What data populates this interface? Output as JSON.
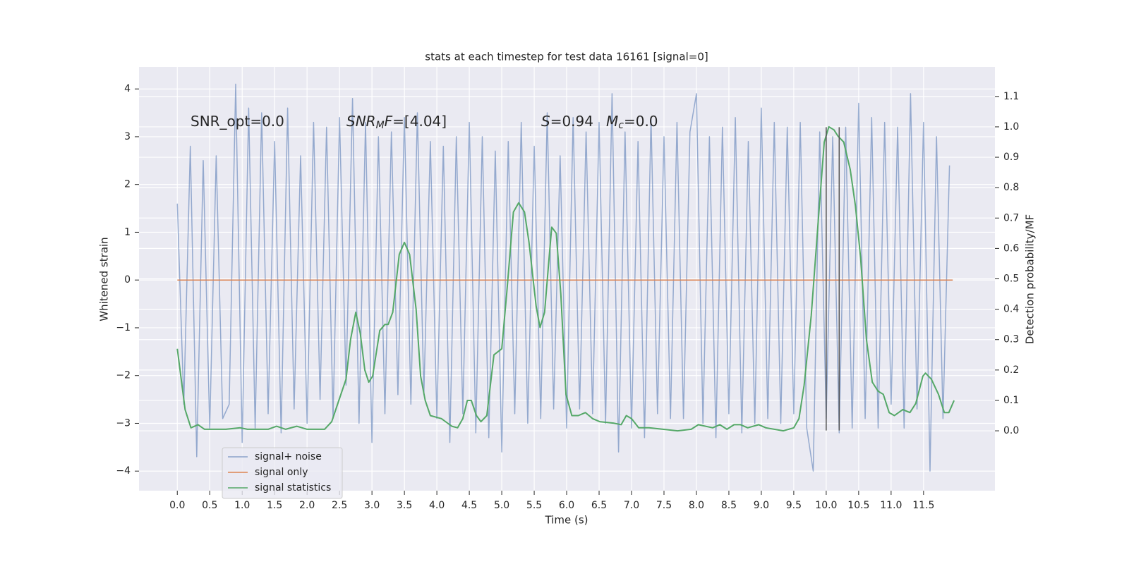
{
  "chart_data": {
    "type": "line",
    "title": "stats at each timestep for test data 16161 [signal=0]",
    "xlabel": "Time (s)",
    "ylabel": "Whitened strain",
    "y2label": "Detection probability/MF",
    "xlim": [
      -0.59,
      12.6
    ],
    "ylim": [
      -4.41,
      4.46
    ],
    "y2lim": [
      -0.197,
      1.197
    ],
    "xticks": [
      {
        "value": 0,
        "label": "0.0"
      },
      0.5,
      {
        "value": 1,
        "label": "1.0"
      },
      1.5,
      {
        "value": 2,
        "label": "2.0"
      },
      2.5,
      {
        "value": 3,
        "label": "3.0"
      },
      3.5,
      {
        "value": 4,
        "label": "4.0"
      },
      4.5,
      {
        "value": 5,
        "label": "5.0"
      },
      5.5,
      {
        "value": 6,
        "label": "6.0"
      },
      6.5,
      {
        "value": 7,
        "label": "7.0"
      },
      7.5,
      {
        "value": 8,
        "label": "8.0"
      },
      8.5,
      {
        "value": 9,
        "label": "9.0"
      },
      9.5,
      {
        "value": 10,
        "label": "10.0"
      },
      10.5,
      {
        "value": 11,
        "label": "11.0"
      },
      11.5
    ],
    "yticks": [
      {
        "value": -4,
        "label": "−4"
      },
      {
        "value": -3,
        "label": "−3"
      },
      {
        "value": -2,
        "label": "−2"
      },
      {
        "value": -1,
        "label": "−1"
      },
      0,
      1,
      2,
      3,
      4
    ],
    "y2ticks": [
      {
        "value": 0,
        "label": "0.0"
      },
      0.1,
      0.2,
      0.3,
      0.4,
      0.5,
      0.6,
      0.7,
      0.8,
      0.9,
      {
        "value": 1,
        "label": "1.0"
      },
      1.1
    ],
    "grid": true,
    "legend": "lower left",
    "series": [
      {
        "name": "signal+ noise",
        "color": "#4c72b0",
        "axis": "y",
        "x": [
          0.0,
          0.1,
          0.2,
          0.3,
          0.4,
          0.5,
          0.6,
          0.7,
          0.8,
          0.9,
          1.0,
          1.1,
          1.2,
          1.3,
          1.4,
          1.5,
          1.6,
          1.7,
          1.8,
          1.9,
          2.0,
          2.1,
          2.2,
          2.3,
          2.4,
          2.5,
          2.6,
          2.7,
          2.8,
          2.9,
          3.0,
          3.1,
          3.2,
          3.3,
          3.4,
          3.5,
          3.6,
          3.7,
          3.8,
          3.9,
          4.0,
          4.1,
          4.2,
          4.3,
          4.4,
          4.5,
          4.6,
          4.7,
          4.8,
          4.9,
          5.0,
          5.1,
          5.2,
          5.3,
          5.4,
          5.5,
          5.6,
          5.7,
          5.8,
          5.9,
          6.0,
          6.1,
          6.2,
          6.3,
          6.4,
          6.5,
          6.6,
          6.7,
          6.8,
          6.9,
          7.0,
          7.1,
          7.2,
          7.3,
          7.4,
          7.5,
          7.6,
          7.7,
          7.8,
          7.9,
          8.0,
          8.1,
          8.2,
          8.3,
          8.4,
          8.5,
          8.6,
          8.7,
          8.8,
          8.9,
          9.0,
          9.1,
          9.2,
          9.3,
          9.4,
          9.5,
          9.6,
          9.7,
          9.8,
          9.9,
          10.0,
          10.1,
          10.2,
          10.3,
          10.4,
          10.5,
          10.6,
          10.7,
          10.8,
          10.9,
          11.0,
          11.1,
          11.2,
          11.3,
          11.4,
          11.5,
          11.6,
          11.7,
          11.8,
          11.9
        ],
        "values": [
          1.6,
          -2.6,
          2.8,
          -3.7,
          2.5,
          -3.1,
          2.6,
          -2.9,
          -2.6,
          4.1,
          -3.4,
          3.6,
          -3.1,
          3.5,
          -2.8,
          2.9,
          -3.2,
          3.6,
          -2.7,
          2.6,
          -3.0,
          3.3,
          -2.5,
          3.2,
          -2.9,
          3.4,
          -2.2,
          3.8,
          -3.0,
          3.3,
          -3.4,
          3.0,
          -2.8,
          3.1,
          -2.4,
          3.4,
          -2.6,
          3.5,
          -2.4,
          2.9,
          -2.9,
          2.8,
          -3.4,
          3.0,
          -2.8,
          3.3,
          -3.2,
          3.0,
          -3.3,
          2.7,
          -3.6,
          2.9,
          -2.8,
          3.3,
          -3.0,
          2.8,
          -2.9,
          3.5,
          -2.7,
          2.6,
          -3.1,
          3.4,
          -2.7,
          3.1,
          -2.8,
          3.3,
          -3.0,
          3.9,
          -3.6,
          3.1,
          -3.1,
          2.9,
          -3.3,
          3.4,
          -2.8,
          3.0,
          -2.9,
          3.3,
          -2.9,
          3.1,
          3.9,
          -3.0,
          3.0,
          -3.3,
          3.2,
          -2.8,
          3.4,
          -3.2,
          2.9,
          -3.0,
          3.6,
          -2.9,
          3.3,
          -3.0,
          3.2,
          -2.8,
          3.3,
          -3.1,
          -4.0,
          3.1,
          -2.9,
          3.0,
          -3.2,
          3.2,
          -3.1,
          3.7,
          -2.9,
          3.4,
          -3.1,
          3.3,
          -2.6,
          3.2,
          -3.1,
          3.9,
          -2.7,
          3.3,
          -4.0,
          3.0,
          -2.9,
          2.4
        ]
      },
      {
        "name": "signal only",
        "color": "#dd8452",
        "axis": "y",
        "x": [
          0.0,
          11.95
        ],
        "values": [
          0,
          0
        ]
      },
      {
        "name": "signal statistics",
        "color": "#55a868",
        "axis": "y2",
        "x": [
          0.0,
          0.12,
          0.21,
          0.32,
          0.42,
          0.75,
          0.97,
          1.08,
          1.4,
          1.53,
          1.67,
          1.84,
          2.0,
          2.27,
          2.38,
          2.49,
          2.6,
          2.67,
          2.75,
          2.82,
          2.89,
          2.95,
          3.01,
          3.12,
          3.2,
          3.25,
          3.32,
          3.42,
          3.5,
          3.58,
          3.68,
          3.75,
          3.82,
          3.9,
          4.07,
          4.23,
          4.32,
          4.4,
          4.47,
          4.53,
          4.61,
          4.68,
          4.77,
          4.88,
          5.0,
          5.08,
          5.18,
          5.26,
          5.35,
          5.42,
          5.53,
          5.59,
          5.66,
          5.73,
          5.77,
          5.84,
          5.91,
          5.99,
          6.08,
          6.18,
          6.29,
          6.4,
          6.51,
          6.73,
          6.84,
          6.92,
          7.0,
          7.11,
          7.27,
          7.71,
          7.92,
          8.03,
          8.25,
          8.36,
          8.47,
          8.58,
          8.68,
          8.79,
          8.96,
          9.07,
          9.34,
          9.5,
          9.58,
          9.66,
          9.77,
          9.88,
          9.97,
          10.04,
          10.12,
          10.18,
          10.27,
          10.37,
          10.45,
          10.53,
          10.62,
          10.71,
          10.8,
          10.88,
          10.97,
          11.05,
          11.18,
          11.29,
          11.38,
          11.49,
          11.53,
          11.62,
          11.73,
          11.82,
          11.89,
          11.97
        ],
        "values": [
          0.27,
          0.07,
          0.01,
          0.02,
          0.005,
          0.005,
          0.01,
          0.005,
          0.005,
          0.015,
          0.005,
          0.015,
          0.005,
          0.005,
          0.03,
          0.1,
          0.17,
          0.3,
          0.39,
          0.32,
          0.2,
          0.16,
          0.18,
          0.33,
          0.35,
          0.35,
          0.39,
          0.58,
          0.62,
          0.58,
          0.4,
          0.18,
          0.1,
          0.05,
          0.04,
          0.015,
          0.01,
          0.04,
          0.1,
          0.1,
          0.05,
          0.03,
          0.05,
          0.25,
          0.27,
          0.46,
          0.72,
          0.75,
          0.72,
          0.62,
          0.41,
          0.34,
          0.39,
          0.57,
          0.67,
          0.65,
          0.45,
          0.12,
          0.05,
          0.05,
          0.06,
          0.04,
          0.03,
          0.025,
          0.02,
          0.05,
          0.04,
          0.01,
          0.01,
          0.0,
          0.005,
          0.02,
          0.01,
          0.02,
          0.005,
          0.02,
          0.02,
          0.01,
          0.02,
          0.01,
          0.0,
          0.01,
          0.04,
          0.15,
          0.38,
          0.7,
          0.95,
          1.0,
          0.99,
          0.97,
          0.95,
          0.86,
          0.74,
          0.57,
          0.3,
          0.16,
          0.13,
          0.12,
          0.06,
          0.05,
          0.07,
          0.06,
          0.09,
          0.18,
          0.19,
          0.17,
          0.12,
          0.06,
          0.06,
          0.1
        ]
      }
    ],
    "vlines": [
      {
        "x": 10.0,
        "y": [
          -3.15,
          3.2
        ]
      },
      {
        "x": 10.2,
        "y": [
          -3.15,
          3.2
        ]
      }
    ],
    "vline_color": "#555555",
    "annotations": [
      [
        {
          "t": "SNR_opt=0.0"
        }
      ],
      [
        {
          "t": "SNR",
          "i": true
        },
        {
          "t": "M",
          "i": true,
          "sub": true
        },
        {
          "t": "F",
          "i": true
        },
        {
          "t": "=[4.04]"
        }
      ],
      [
        {
          "t": "S",
          "i": true
        },
        {
          "t": "=0.94"
        }
      ],
      [
        {
          "t": "M",
          "i": true
        },
        {
          "t": "c",
          "i": true,
          "sub": true
        },
        {
          "t": "=0.0"
        }
      ]
    ]
  }
}
